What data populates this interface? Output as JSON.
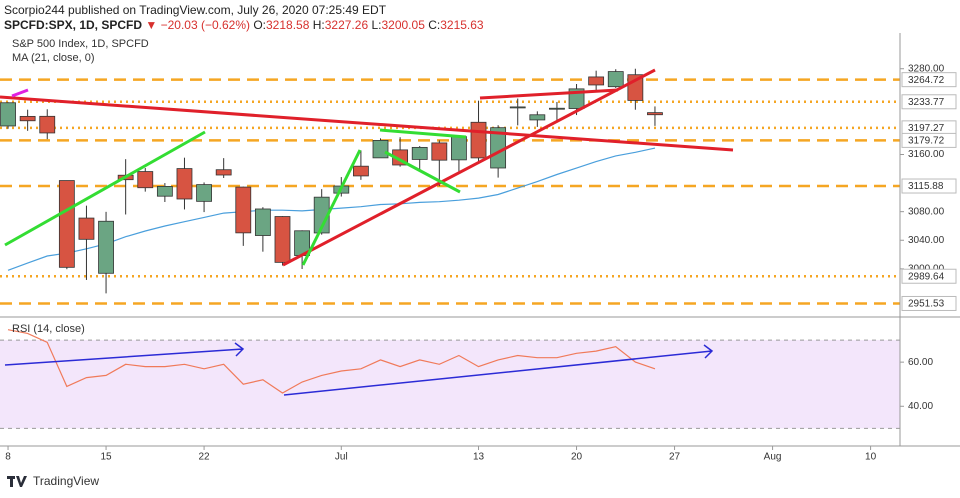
{
  "header": {
    "publisher": "Scorpio244 published on TradingView.com, July 26, 2020 07:25:49 EDT",
    "symbol": "SPCFD:SPX, 1D, SPCFD",
    "change": "▼ −20.03 (−0.62%)",
    "ohlc": [
      {
        "label": "O:",
        "value": "3218.58"
      },
      {
        "label": "H:",
        "value": "3227.26"
      },
      {
        "label": "L:",
        "value": "3200.05"
      },
      {
        "label": "C:",
        "value": "3215.63"
      }
    ]
  },
  "footer": {
    "brand": "TradingView"
  },
  "chart_data": [
    {
      "type": "candlestick",
      "title": "S&P 500 Index, 1D, SPCFD",
      "up_color": "#6ba583",
      "down_color": "#d75442",
      "open": [
        3199.92,
        3213.32,
        3213.42,
        3123.53,
        3071.04,
        2993.76,
        3131.0,
        3136.13,
        3101.64,
        3140.29,
        3094.42,
        3138.7,
        3114.4,
        3046.6,
        3073.2,
        3018.59,
        3050.2,
        3105.92,
        3143.64,
        3155.29,
        3166.44,
        3153.07,
        3176.17,
        3152.47,
        3205.08,
        3141.11,
        3225.98,
        3208.36,
        3224.21,
        3224.29,
        3268.52,
        3254.86,
        3271.64,
        3218.58
      ],
      "high": [
        3233.13,
        3222.71,
        3223.27,
        3123.53,
        3088.42,
        3079.76,
        3153.45,
        3141.16,
        3120.0,
        3155.53,
        3120.92,
        3154.9,
        3115.01,
        3086.25,
        3073.73,
        3053.89,
        3111.51,
        3128.44,
        3165.81,
        3182.59,
        3184.15,
        3171.8,
        3179.78,
        3186.82,
        3235.32,
        3200.95,
        3238.28,
        3220.39,
        3233.52,
        3258.61,
        3277.29,
        3279.32,
        3279.99,
        3227.26
      ],
      "low": [
        3196.0,
        3193.11,
        3181.49,
        2999.49,
        2984.47,
        2965.66,
        3076.06,
        3108.03,
        3093.51,
        3083.11,
        3079.39,
        3127.12,
        3032.13,
        3024.01,
        3004.63,
        2999.74,
        3047.83,
        3101.17,
        3124.52,
        3155.29,
        3142.93,
        3136.53,
        3115.7,
        3136.22,
        3149.43,
        3127.66,
        3200.76,
        3198.59,
        3205.65,
        3215.16,
        3247.77,
        3253.1,
        3222.66,
        3200.05
      ],
      "close": [
        3232.39,
        3207.18,
        3190.14,
        3002.1,
        3041.31,
        3066.59,
        3124.74,
        3113.49,
        3115.34,
        3097.74,
        3117.86,
        3131.29,
        3050.33,
        3083.76,
        3009.05,
        3053.24,
        3100.29,
        3115.86,
        3130.01,
        3179.72,
        3145.32,
        3169.94,
        3152.05,
        3185.04,
        3155.22,
        3197.52,
        3226.56,
        3215.57,
        3224.73,
        3251.84,
        3257.3,
        3276.02,
        3235.66,
        3215.63
      ],
      "series": [
        {
          "name": "MA (21, close, 0)",
          "color": "#4a9fdc",
          "values": [
            2998,
            3008,
            3018,
            3022,
            3028,
            3035,
            3045,
            3053,
            3060,
            3066,
            3072,
            3078,
            3080,
            3082,
            3082,
            3081,
            3083,
            3085,
            3087,
            3090,
            3091,
            3093,
            3094,
            3096,
            3099,
            3104,
            3113,
            3122,
            3132,
            3141,
            3150,
            3158,
            3163,
            3169
          ]
        }
      ],
      "levels": [
        {
          "value": 3264.72,
          "style": "dashed"
        },
        {
          "value": 3233.77,
          "style": "dotted"
        },
        {
          "value": 3197.27,
          "style": "dotted"
        },
        {
          "value": 3179.72,
          "style": "dashed"
        },
        {
          "value": 3115.88,
          "style": "dashed"
        },
        {
          "value": 2989.64,
          "style": "dotted"
        },
        {
          "value": 2951.53,
          "style": "dashed"
        }
      ],
      "level_color": "#f5a623",
      "ylim": [
        2934,
        3330
      ],
      "yticks": [
        {
          "value": 3280,
          "label": "3280.00"
        },
        {
          "value": 3160,
          "label": "3160.00"
        },
        {
          "value": 3080,
          "label": "3080.00"
        },
        {
          "value": 3040,
          "label": "3040.00"
        },
        {
          "value": 3000,
          "label": "3000.00"
        }
      ],
      "xlim": [
        -0.41,
        45.5
      ],
      "xticks": [
        {
          "value": 0,
          "label": "8"
        },
        {
          "value": 5,
          "label": "15"
        },
        {
          "value": 10,
          "label": "22"
        },
        {
          "value": 17,
          "label": "Jul"
        },
        {
          "value": 24,
          "label": "13"
        },
        {
          "value": 29,
          "label": "20"
        },
        {
          "value": 34,
          "label": "27"
        },
        {
          "value": 39,
          "label": "Aug"
        },
        {
          "value": 44,
          "label": "10"
        }
      ]
    },
    {
      "type": "line",
      "series": [
        {
          "name": "RSI (14, close)",
          "color": "#f07a5a",
          "values": [
            74.7,
            73,
            69,
            49,
            53,
            54,
            59,
            58,
            58,
            59,
            57,
            59,
            50,
            52,
            46,
            51,
            54,
            56,
            57,
            61,
            58,
            61,
            59,
            63,
            58,
            61,
            63,
            62,
            62,
            64,
            65,
            67,
            60,
            57
          ]
        }
      ],
      "band": [
        30,
        70
      ],
      "band_color": "#f3e6fb",
      "ylim": [
        22,
        80
      ],
      "yticks": [
        {
          "value": 60,
          "label": "60.00"
        },
        {
          "value": 40,
          "label": "40.00"
        }
      ],
      "xlim": [
        -0.41,
        45.5
      ]
    }
  ]
}
